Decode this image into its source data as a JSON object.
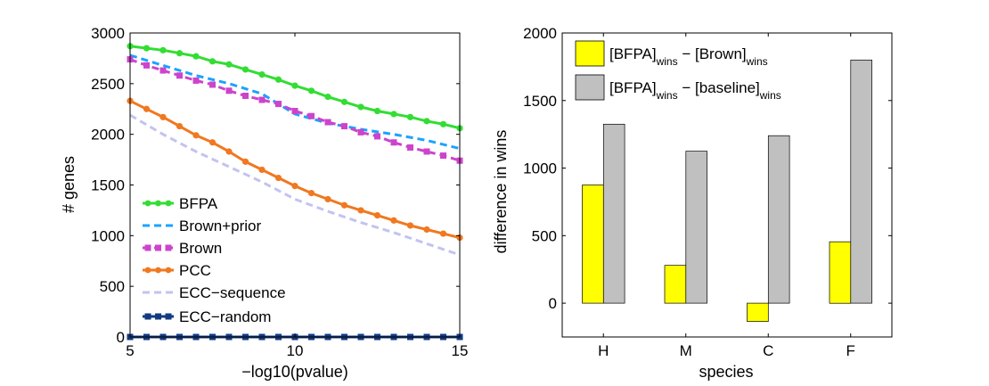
{
  "chart_data": [
    {
      "type": "line",
      "title": "",
      "xlabel": "−log10(pvalue)",
      "ylabel": "# genes",
      "xlim": [
        5,
        15
      ],
      "ylim": [
        0,
        3000
      ],
      "xticks": [
        5,
        10,
        15
      ],
      "yticks": [
        0,
        500,
        1000,
        1500,
        2000,
        2500,
        3000
      ],
      "legend_position": "bottom-left",
      "grid": false,
      "series": [
        {
          "name": "BFPA",
          "color": "#33dd33",
          "style": "solid",
          "marker": "dot",
          "x": [
            5,
            5.5,
            6,
            6.5,
            7,
            7.5,
            8,
            8.5,
            9,
            9.5,
            10,
            10.5,
            11,
            11.5,
            12,
            12.5,
            13,
            13.5,
            14,
            14.5,
            15
          ],
          "y": [
            2870,
            2850,
            2830,
            2800,
            2770,
            2720,
            2690,
            2640,
            2590,
            2540,
            2480,
            2430,
            2370,
            2320,
            2270,
            2230,
            2200,
            2170,
            2130,
            2100,
            2060
          ]
        },
        {
          "name": "Brown+prior",
          "color": "#1aa3ff",
          "style": "dashed",
          "marker": "none",
          "x": [
            5,
            6,
            7,
            8,
            9,
            10,
            11,
            12,
            13,
            14,
            15
          ],
          "y": [
            2780,
            2680,
            2580,
            2500,
            2400,
            2200,
            2110,
            2050,
            2000,
            1940,
            1860
          ]
        },
        {
          "name": "Brown",
          "color": "#cc44cc",
          "style": "dashed",
          "marker": "square",
          "x": [
            5,
            5.5,
            6,
            6.5,
            7,
            7.5,
            8,
            8.5,
            9,
            9.5,
            10,
            10.5,
            11,
            11.5,
            12,
            12.5,
            13,
            13.5,
            14,
            14.5,
            15
          ],
          "y": [
            2740,
            2680,
            2630,
            2580,
            2530,
            2490,
            2430,
            2380,
            2340,
            2300,
            2230,
            2180,
            2120,
            2080,
            2020,
            1980,
            1920,
            1870,
            1830,
            1790,
            1740
          ]
        },
        {
          "name": "PCC",
          "color": "#f07820",
          "style": "solid",
          "marker": "dot",
          "x": [
            5,
            5.5,
            6,
            6.5,
            7,
            7.5,
            8,
            8.5,
            9,
            9.5,
            10,
            10.5,
            11,
            11.5,
            12,
            12.5,
            13,
            13.5,
            14,
            14.5,
            15
          ],
          "y": [
            2330,
            2250,
            2170,
            2080,
            1990,
            1920,
            1830,
            1730,
            1650,
            1570,
            1490,
            1420,
            1360,
            1300,
            1250,
            1200,
            1150,
            1100,
            1060,
            1020,
            980
          ]
        },
        {
          "name": "ECC−sequence",
          "color": "#c3c3f0",
          "style": "dashed",
          "marker": "none",
          "x": [
            5,
            6,
            7,
            8,
            9,
            10,
            11,
            12,
            13,
            14,
            15
          ],
          "y": [
            2190,
            2000,
            1830,
            1680,
            1530,
            1360,
            1240,
            1130,
            1030,
            920,
            810
          ]
        },
        {
          "name": "ECC−random",
          "color": "#123a80",
          "style": "solid",
          "marker": "square",
          "x": [
            5,
            5.5,
            6,
            6.5,
            7,
            7.5,
            8,
            8.5,
            9,
            9.5,
            10,
            10.5,
            11,
            11.5,
            12,
            12.5,
            13,
            13.5,
            14,
            14.5,
            15
          ],
          "y": [
            0,
            0,
            0,
            0,
            0,
            0,
            0,
            0,
            0,
            0,
            0,
            0,
            0,
            0,
            0,
            0,
            0,
            0,
            0,
            0,
            0
          ]
        }
      ]
    },
    {
      "type": "bar",
      "title": "",
      "xlabel": "species",
      "ylabel": "difference in wins",
      "categories": [
        "H",
        "M",
        "C",
        "F"
      ],
      "ylim": [
        -250,
        2000
      ],
      "yticks": [
        0,
        500,
        1000,
        1500,
        2000
      ],
      "legend_position": "top-left",
      "grid": false,
      "series": [
        {
          "name_parts": [
            "[BFPA]",
            "wins",
            " − [Brown]",
            "wins"
          ],
          "color": "#ffff00",
          "values": [
            875,
            280,
            -135,
            455
          ]
        },
        {
          "name_parts": [
            "[BFPA]",
            "wins",
            " − [baseline]",
            "wins"
          ],
          "color": "#c0c0c0",
          "values": [
            1325,
            1125,
            1240,
            1800
          ]
        }
      ]
    }
  ]
}
